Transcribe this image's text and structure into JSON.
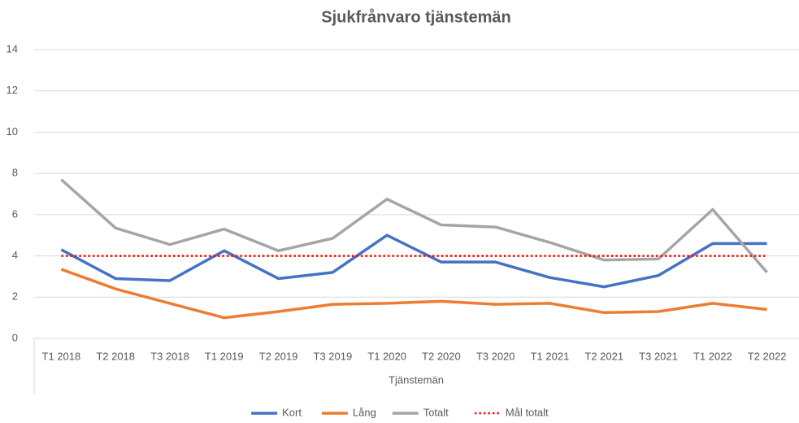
{
  "chart_data": {
    "type": "line",
    "title": "Sjukfrånvaro tjänstemän",
    "x_label": "Tjänstemän",
    "categories": [
      "T1 2018",
      "T2 2018",
      "T3 2018",
      "T1 2019",
      "T2 2019",
      "T3 2019",
      "T1 2020",
      "T2 2020",
      "T3 2020",
      "T1 2021",
      "T2 2021",
      "T3 2021",
      "T1 2022",
      "T2 2022"
    ],
    "series": [
      {
        "name": "Kort",
        "color": "#4472c4",
        "values": [
          4.3,
          2.9,
          2.8,
          4.25,
          2.9,
          3.2,
          5.0,
          3.7,
          3.7,
          2.95,
          2.5,
          3.05,
          4.6,
          4.6
        ]
      },
      {
        "name": "Lång",
        "color": "#ed7d31",
        "values": [
          3.35,
          2.4,
          1.7,
          1.0,
          1.3,
          1.65,
          1.7,
          1.8,
          1.65,
          1.7,
          1.25,
          1.3,
          1.7,
          1.4
        ]
      },
      {
        "name": "Totalt",
        "color": "#a5a5a5",
        "values": [
          7.7,
          5.35,
          4.55,
          5.3,
          4.25,
          4.85,
          6.75,
          5.5,
          5.4,
          4.65,
          3.8,
          3.85,
          6.25,
          3.2
        ]
      },
      {
        "name": "Mål totalt",
        "color": "#ff0000",
        "dotted": true,
        "values": [
          4,
          4,
          4,
          4,
          4,
          4,
          4,
          4,
          4,
          4,
          4,
          4,
          4,
          4
        ]
      }
    ],
    "ylim": [
      0,
      14
    ],
    "yticks": [
      0,
      2,
      4,
      6,
      8,
      10,
      12,
      14
    ],
    "grid": true,
    "legend": "bottom"
  }
}
